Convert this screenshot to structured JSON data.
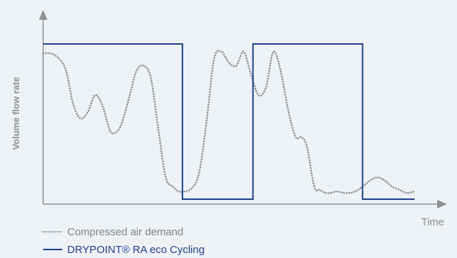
{
  "chart_data": {
    "type": "line",
    "ylabel": "Volume flow rate",
    "xlabel": "Time",
    "xlim": [
      0,
      100
    ],
    "ylim": [
      0,
      100
    ],
    "grid": false,
    "legend_position": "bottom-left",
    "series": [
      {
        "name": "Compressed air demand",
        "style": "dotted",
        "color": "#8a8f94",
        "x": [
          0,
          3,
          6,
          8,
          10,
          12,
          14,
          16,
          18,
          19.5,
          21,
          23,
          25,
          27,
          29,
          31,
          33,
          35,
          36.5,
          38,
          40,
          42,
          44,
          46,
          48,
          50,
          52,
          54,
          56,
          58,
          60,
          62,
          64,
          66,
          68,
          69.5,
          71,
          73,
          74.5,
          76,
          77.5,
          79,
          81,
          82.5,
          84,
          86,
          88,
          90,
          92,
          94,
          96,
          98,
          100
        ],
        "y": [
          94,
          93,
          84,
          62,
          52,
          56,
          67,
          60,
          44,
          43,
          48,
          64,
          82,
          86,
          78,
          45,
          14,
          8,
          5,
          5,
          7,
          17,
          50,
          90,
          95,
          88,
          86,
          95,
          80,
          67,
          72,
          95,
          82,
          57,
          40,
          40,
          34,
          8,
          6,
          4,
          4,
          5,
          4,
          4,
          5,
          8,
          12,
          14,
          12,
          8,
          6,
          4,
          5
        ]
      },
      {
        "name": "DRYPOINT® RA eco Cycling",
        "style": "solid",
        "color": "#1f3f8a",
        "x": [
          0,
          37.5,
          37.5,
          56.5,
          56.5,
          86,
          86,
          100
        ],
        "y": [
          100,
          100,
          0,
          0,
          100,
          100,
          0,
          0
        ]
      }
    ]
  }
}
